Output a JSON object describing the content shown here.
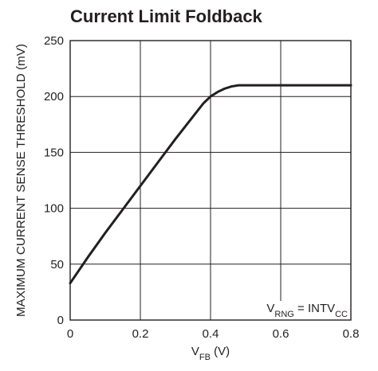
{
  "chart_data": {
    "type": "line",
    "title": "Current Limit Foldback",
    "xlabel": {
      "main": "V",
      "sub": "FB",
      "unit": " (V)"
    },
    "ylabel": "MAXIMUM CURRENT SENSE THRESHOLD (mV)",
    "xlim": [
      0,
      0.8
    ],
    "ylim": [
      0,
      250
    ],
    "x_ticks": [
      "0",
      "0.2",
      "0.4",
      "0.6",
      "0.8"
    ],
    "y_ticks": [
      "0",
      "50",
      "100",
      "150",
      "200",
      "250"
    ],
    "grid": true,
    "annotation": {
      "parts": [
        {
          "text": "V",
          "sub": false
        },
        {
          "text": "RNG",
          "sub": true
        },
        {
          "text": " = INTV",
          "sub": false
        },
        {
          "text": "CC",
          "sub": true
        }
      ],
      "position": "bottom-right"
    },
    "series": [
      {
        "x": [
          0,
          0.05,
          0.1,
          0.15,
          0.2,
          0.25,
          0.3,
          0.35,
          0.38,
          0.4,
          0.42,
          0.44,
          0.46,
          0.48,
          0.5,
          0.55,
          0.6,
          0.7,
          0.8
        ],
        "y": [
          33,
          56,
          78,
          99,
          120,
          141,
          162,
          182,
          194,
          200,
          204,
          207,
          209,
          210,
          210,
          210,
          210,
          210,
          210
        ],
        "color": "#231f20"
      }
    ]
  }
}
